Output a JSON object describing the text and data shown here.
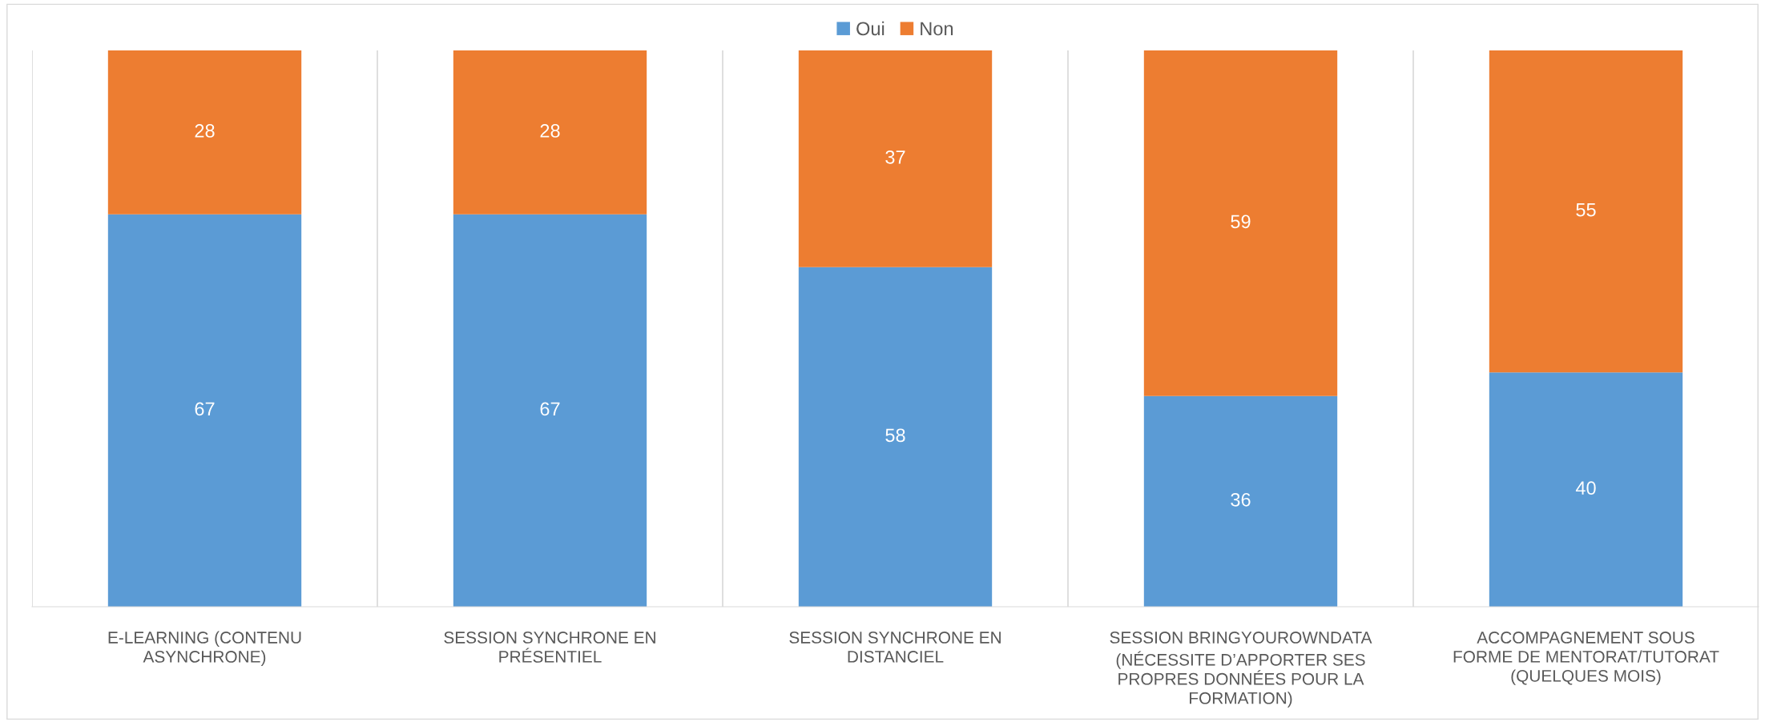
{
  "chart_data": {
    "type": "bar",
    "stacked": true,
    "categories": [
      "E-LEARNING (CONTENU\nASYNCHRONE)",
      "SESSION SYNCHRONE EN\nPRÉSENTIEL",
      "SESSION SYNCHRONE EN\nDISTANCIEL",
      "SESSION BRINGYOUROWNDATA\n(NÉCESSITE D’APPORTER SES\nPROPRES DONNÉES POUR LA\nFORMATION)",
      "ACCOMPAGNEMENT SOUS\nFORME DE MENTORAT/TUTORAT\n(QUELQUES MOIS)"
    ],
    "series": [
      {
        "name": "Oui",
        "color": "#5b9bd5",
        "values": [
          67,
          67,
          58,
          36,
          40
        ]
      },
      {
        "name": "Non",
        "color": "#ed7d31",
        "values": [
          28,
          28,
          37,
          59,
          55
        ]
      }
    ],
    "data_labels": true,
    "legend": "top",
    "grid": "x",
    "tick_labels": "x"
  }
}
